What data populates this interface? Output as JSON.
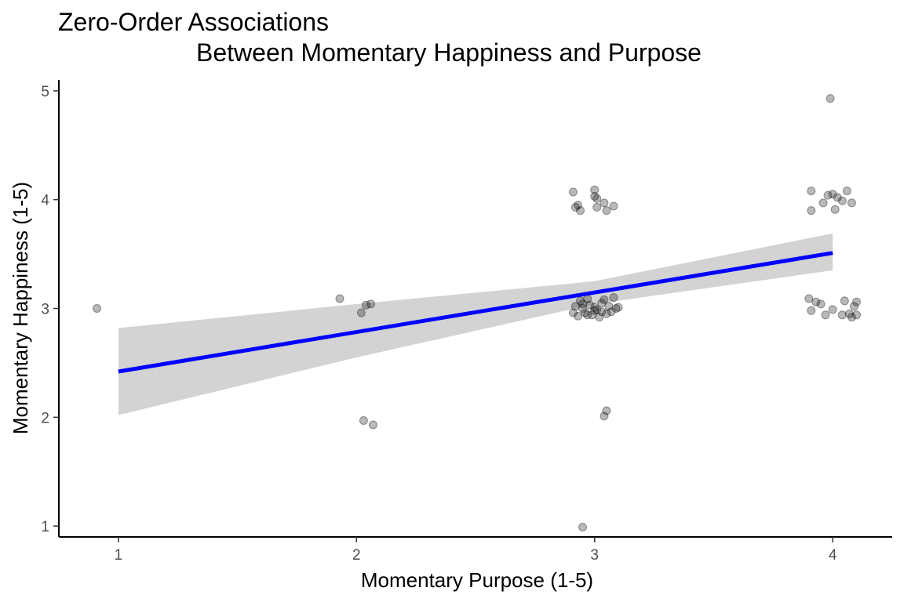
{
  "chart_data": {
    "type": "scatter",
    "title_lines": [
      "Zero-Order Associations",
      "Between Momentary Happiness and Purpose"
    ],
    "xlabel": "Momentary Purpose (1-5)",
    "ylabel": "Momentary Happiness (1-5)",
    "xlim": [
      0.75,
      4.25
    ],
    "ylim": [
      0.9,
      5.1
    ],
    "x_ticks": [
      "1",
      "2",
      "3",
      "4"
    ],
    "y_ticks": [
      "1",
      "2",
      "3",
      "4",
      "5"
    ],
    "grid": false,
    "legend": "none",
    "point_color": "#000000",
    "point_opacity": 0.28,
    "fit_color": "#0000ff",
    "ribbon_color": "#d3d3d3",
    "fit_line": {
      "x": [
        1,
        4
      ],
      "y": [
        2.42,
        3.51
      ]
    },
    "confidence_band": {
      "x": [
        1,
        2,
        3,
        4
      ],
      "lower": [
        2.02,
        2.55,
        3.04,
        3.35
      ],
      "upper": [
        2.82,
        3.04,
        3.25,
        3.69
      ]
    },
    "points": [
      [
        0.91,
        3.0
      ],
      [
        1.93,
        3.09
      ],
      [
        2.02,
        2.96
      ],
      [
        2.04,
        3.03
      ],
      [
        2.06,
        3.04
      ],
      [
        2.03,
        1.97
      ],
      [
        2.07,
        1.93
      ],
      [
        2.91,
        4.07
      ],
      [
        2.92,
        3.93
      ],
      [
        2.93,
        3.95
      ],
      [
        2.94,
        3.9
      ],
      [
        3.0,
        4.09
      ],
      [
        3.0,
        4.03
      ],
      [
        3.01,
        4.01
      ],
      [
        3.01,
        3.93
      ],
      [
        3.04,
        3.97
      ],
      [
        3.05,
        3.9
      ],
      [
        3.08,
        3.94
      ],
      [
        2.91,
        2.96
      ],
      [
        2.92,
        3.02
      ],
      [
        2.93,
        2.93
      ],
      [
        2.94,
        3.07
      ],
      [
        2.95,
        3.0
      ],
      [
        2.96,
        2.96
      ],
      [
        2.97,
        3.09
      ],
      [
        2.98,
        3.03
      ],
      [
        2.99,
        2.94
      ],
      [
        3.0,
        2.98
      ],
      [
        3.0,
        3.01
      ],
      [
        3.01,
        2.99
      ],
      [
        3.02,
        2.92
      ],
      [
        3.03,
        3.05
      ],
      [
        3.04,
        3.08
      ],
      [
        3.05,
        2.95
      ],
      [
        3.06,
        3.02
      ],
      [
        3.07,
        2.97
      ],
      [
        3.08,
        3.1
      ],
      [
        3.09,
        3.0
      ],
      [
        3.1,
        3.01
      ],
      [
        2.95,
        3.04
      ],
      [
        2.97,
        2.94
      ],
      [
        3.03,
        2.97
      ],
      [
        3.04,
        2.01
      ],
      [
        3.05,
        2.06
      ],
      [
        2.95,
        0.99
      ],
      [
        3.91,
        4.08
      ],
      [
        3.91,
        3.9
      ],
      [
        3.96,
        3.97
      ],
      [
        3.98,
        4.04
      ],
      [
        4.0,
        4.05
      ],
      [
        4.01,
        3.91
      ],
      [
        4.02,
        4.02
      ],
      [
        4.04,
        3.99
      ],
      [
        4.06,
        4.08
      ],
      [
        4.08,
        3.97
      ],
      [
        3.9,
        3.09
      ],
      [
        3.91,
        2.98
      ],
      [
        3.93,
        3.06
      ],
      [
        3.95,
        3.04
      ],
      [
        3.97,
        2.94
      ],
      [
        4.0,
        2.99
      ],
      [
        4.04,
        2.94
      ],
      [
        4.05,
        3.07
      ],
      [
        4.07,
        2.95
      ],
      [
        4.08,
        2.92
      ],
      [
        4.09,
        3.02
      ],
      [
        4.1,
        3.06
      ],
      [
        4.1,
        2.94
      ],
      [
        3.99,
        4.93
      ]
    ]
  }
}
